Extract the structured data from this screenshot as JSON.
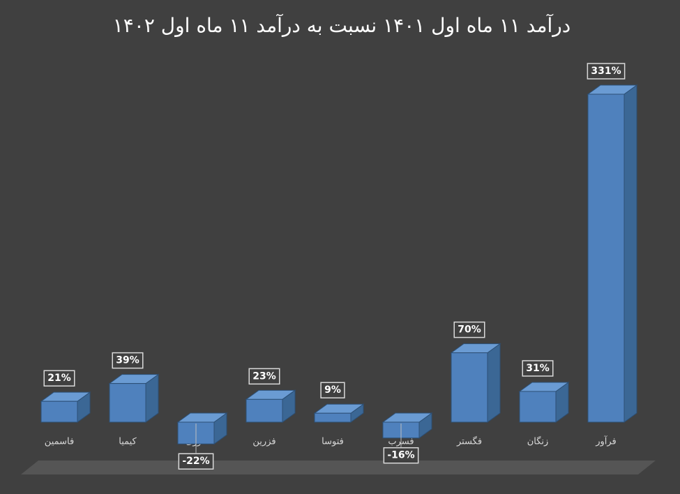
{
  "chart_data": {
    "type": "bar3d",
    "title": "درآمد ۱۱ ماه اول ۱۴۰۱ نسبت به درآمد ۱۱ ماه اول ۱۴۰۲",
    "categories": [
      "فاسمین",
      "کیمیا",
      "فروی",
      "فزرین",
      "فتوسا",
      "فسرب",
      "فگستر",
      "زنگان",
      "فرآور"
    ],
    "values": [
      21,
      39,
      -22,
      23,
      9,
      -16,
      70,
      31,
      331
    ],
    "value_labels": [
      "21%",
      "39%",
      "-22%",
      "23%",
      "9%",
      "-16%",
      "70%",
      "31%",
      "331%"
    ],
    "color": "#4f81bd"
  }
}
